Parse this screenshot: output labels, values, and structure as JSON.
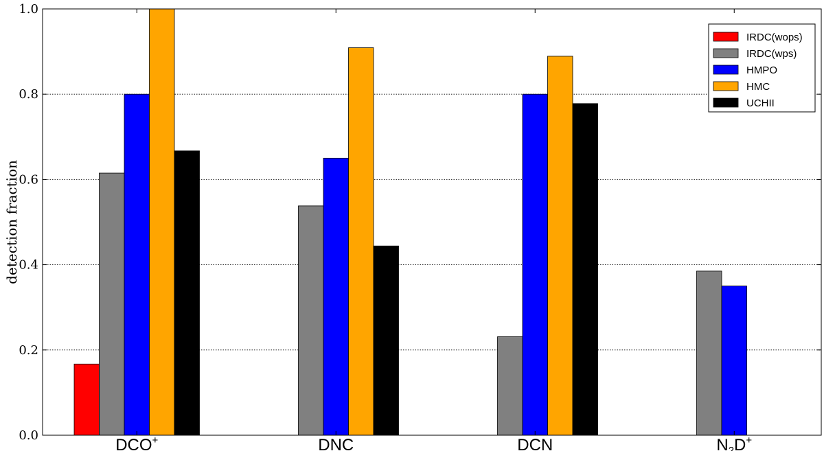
{
  "chart_data": {
    "type": "bar",
    "categories": [
      {
        "main": "DCO",
        "sup": "+"
      },
      {
        "main": "DNC"
      },
      {
        "main": "DCN"
      },
      {
        "main": "N",
        "sub": "2",
        "main2": "D",
        "sup": "+"
      }
    ],
    "series": [
      {
        "name": "IRDC(wops)",
        "color": "#ff0000",
        "values": [
          0.167,
          null,
          null,
          null
        ]
      },
      {
        "name": "IRDC(wps)",
        "color": "#808080",
        "values": [
          0.615,
          0.538,
          0.231,
          0.385
        ]
      },
      {
        "name": "HMPO",
        "color": "#0000ff",
        "values": [
          0.8,
          0.65,
          0.8,
          0.35
        ]
      },
      {
        "name": "HMC",
        "color": "#ffa500",
        "values": [
          1.0,
          0.909,
          0.889,
          null
        ]
      },
      {
        "name": "UCHII",
        "color": "#000000",
        "values": [
          0.667,
          0.444,
          0.778,
          null
        ]
      }
    ],
    "ylabel": "detection fraction",
    "ylim": [
      0.0,
      1.0
    ],
    "yticks": [
      "0.0",
      "0.2",
      "0.4",
      "0.6",
      "0.8",
      "1.0"
    ],
    "grid": "horizontal dotted",
    "legend_position": "top-right"
  }
}
